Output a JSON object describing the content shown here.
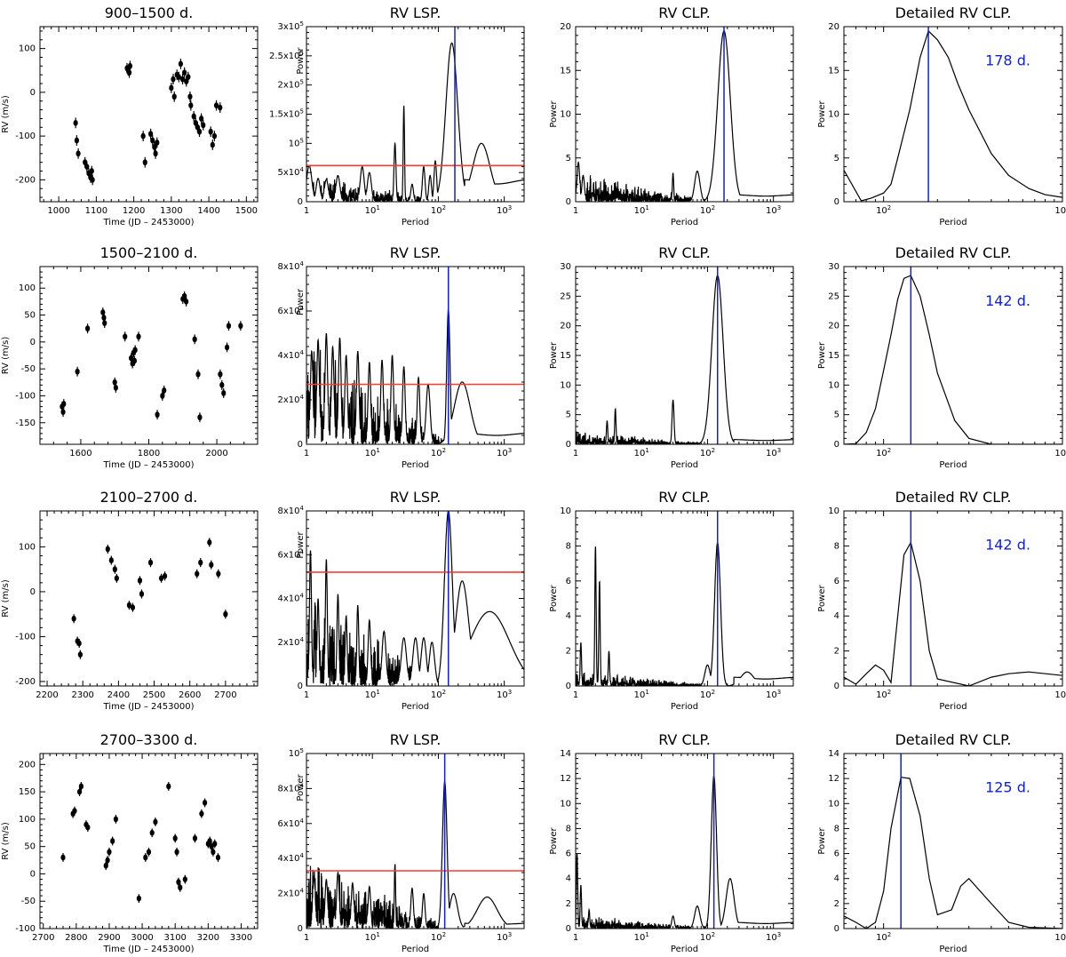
{
  "chart_data": [
    {
      "type": "scatter",
      "title": "900–1500 d.",
      "xlabel": "Time (JD – 2453000)",
      "ylabel": "RV (m/s)",
      "xlim": [
        950,
        1530
      ],
      "ylim": [
        -250,
        150
      ],
      "xticks": [
        1000,
        1100,
        1200,
        1300,
        1400,
        1500
      ],
      "yticks": [
        -200,
        -100,
        0,
        100
      ],
      "x": [
        1045,
        1048,
        1052,
        1070,
        1075,
        1080,
        1085,
        1088,
        1090,
        1182,
        1185,
        1188,
        1190,
        1225,
        1230,
        1245,
        1250,
        1255,
        1258,
        1262,
        1300,
        1305,
        1308,
        1315,
        1320,
        1325,
        1330,
        1335,
        1340,
        1345,
        1350,
        1352,
        1360,
        1365,
        1370,
        1375,
        1380,
        1385,
        1405,
        1410,
        1415,
        1420,
        1430
      ],
      "y": [
        -70,
        -110,
        -140,
        -160,
        -170,
        -185,
        -195,
        -180,
        -200,
        55,
        50,
        45,
        60,
        -100,
        -160,
        -95,
        -110,
        -125,
        -140,
        -115,
        10,
        30,
        -10,
        40,
        35,
        65,
        30,
        45,
        25,
        35,
        -10,
        -30,
        -55,
        -70,
        -80,
        -90,
        -60,
        -75,
        -90,
        -120,
        -100,
        -30,
        -35
      ],
      "err": [
        12,
        12,
        12,
        12,
        12,
        12,
        12,
        12,
        12,
        12,
        12,
        12,
        12,
        12,
        12,
        12,
        12,
        12,
        12,
        12,
        12,
        12,
        12,
        12,
        12,
        12,
        12,
        12,
        12,
        12,
        12,
        12,
        12,
        12,
        12,
        12,
        12,
        12,
        12,
        12,
        12,
        12,
        12
      ]
    },
    {
      "type": "line",
      "title": "RV LSP.",
      "xlabel": "Period",
      "ylabel": "Power",
      "xscale": "log",
      "xlim": [
        1,
        2000
      ],
      "ylim": [
        0,
        300000
      ],
      "yticklabels": [
        "5x10⁴",
        "10⁵",
        "1.5x10⁵",
        "2x10⁵",
        "2.5x10⁵",
        "3x10⁵"
      ],
      "threshold": 62000,
      "marker": 178,
      "peaks": [
        [
          1.1,
          62000,
          0.04
        ],
        [
          1.5,
          40000,
          0.03
        ],
        [
          2,
          38000,
          0.03
        ],
        [
          3,
          45000,
          0.03
        ],
        [
          7,
          60000,
          0.03
        ],
        [
          9,
          50000,
          0.03
        ],
        [
          22,
          100000,
          0.015
        ],
        [
          30,
          165000,
          0.01
        ],
        [
          40,
          30000,
          0.02
        ],
        [
          60,
          60000,
          0.02
        ],
        [
          75,
          45000,
          0.02
        ],
        [
          90,
          70000,
          0.02
        ],
        [
          160,
          272000,
          0.09
        ],
        [
          450,
          100000,
          0.13
        ]
      ],
      "noise": 25000,
      "baseline": 38000
    },
    {
      "type": "line",
      "title": "RV CLP.",
      "xlabel": "Period",
      "ylabel": "Power",
      "xscale": "log",
      "xlim": [
        1,
        2000
      ],
      "ylim": [
        0,
        20
      ],
      "yticks": [
        0,
        5,
        10,
        15,
        20
      ],
      "marker": 178,
      "peaks": [
        [
          1.1,
          4.5,
          0.02
        ],
        [
          1.3,
          3,
          0.02
        ],
        [
          30,
          3.3,
          0.01
        ],
        [
          70,
          3.5,
          0.04
        ],
        [
          178,
          19.5,
          0.095
        ]
      ],
      "noise": 1.8,
      "baseline": 0.8
    },
    {
      "type": "line",
      "title": "Detailed RV CLP.",
      "xlabel": "Period",
      "ylabel": "Power",
      "xscale": "log",
      "xlim": [
        60,
        1000
      ],
      "ylim": [
        0,
        20
      ],
      "yticks": [
        0,
        5,
        10,
        15,
        20
      ],
      "marker": 178,
      "annotation": "178 d.",
      "x": [
        60,
        75,
        85,
        100,
        110,
        120,
        140,
        160,
        178,
        200,
        230,
        260,
        300,
        400,
        500,
        650,
        800,
        1000
      ],
      "y": [
        3.6,
        0.1,
        0.4,
        1,
        2,
        5,
        10.5,
        16.5,
        19.5,
        18.5,
        16.5,
        13.5,
        10.5,
        5.5,
        3,
        1.5,
        0.8,
        0.5
      ]
    },
    {
      "type": "scatter",
      "title": "1500–2100 d.",
      "xlabel": "Time (JD – 2453000)",
      "ylabel": "RV (m/s)",
      "xlim": [
        1480,
        2120
      ],
      "ylim": [
        -190,
        140
      ],
      "xticks": [
        1600,
        1800,
        2000
      ],
      "yticks": [
        -150,
        -100,
        -50,
        0,
        50,
        100
      ],
      "x": [
        1545,
        1548,
        1550,
        1590,
        1620,
        1665,
        1668,
        1670,
        1700,
        1703,
        1730,
        1748,
        1752,
        1755,
        1758,
        1760,
        1770,
        1825,
        1840,
        1845,
        1900,
        1905,
        1910,
        1935,
        1945,
        1950,
        2010,
        2015,
        2020,
        2030,
        2035,
        2070
      ],
      "y": [
        -120,
        -130,
        -115,
        -55,
        25,
        55,
        45,
        35,
        -75,
        -85,
        10,
        -30,
        -40,
        -20,
        -35,
        -15,
        10,
        -135,
        -100,
        -90,
        80,
        85,
        75,
        5,
        -60,
        -140,
        -60,
        -80,
        -95,
        -10,
        30,
        30
      ],
      "err": [
        9,
        9,
        9,
        9,
        9,
        9,
        9,
        9,
        9,
        9,
        9,
        9,
        9,
        9,
        9,
        9,
        9,
        9,
        9,
        9,
        9,
        9,
        9,
        9,
        9,
        9,
        9,
        9,
        9,
        9,
        9,
        9
      ]
    },
    {
      "type": "line",
      "title": "RV LSP.",
      "xlabel": "Period",
      "ylabel": "Power",
      "xscale": "log",
      "xlim": [
        1,
        2000
      ],
      "ylim": [
        0,
        80000
      ],
      "yticklabels": [
        "2x10⁴",
        "4x10⁴",
        "6x10⁴",
        "8x10⁴"
      ],
      "threshold": 27000,
      "marker": 142,
      "peaks": [
        [
          1.2,
          42000,
          0.02
        ],
        [
          1.5,
          47000,
          0.02
        ],
        [
          2,
          50000,
          0.02
        ],
        [
          2.5,
          44000,
          0.02
        ],
        [
          3.2,
          48000,
          0.02
        ],
        [
          4,
          40000,
          0.02
        ],
        [
          6,
          42000,
          0.02
        ],
        [
          9,
          37000,
          0.02
        ],
        [
          14,
          38000,
          0.02
        ],
        [
          20,
          40000,
          0.02
        ],
        [
          30,
          35000,
          0.02
        ],
        [
          50,
          30000,
          0.02
        ],
        [
          70,
          27000,
          0.03
        ],
        [
          142,
          61000,
          0.025
        ],
        [
          230,
          28000,
          0.12
        ]
      ],
      "noise": 25000,
      "baseline": 5000
    },
    {
      "type": "line",
      "title": "RV CLP.",
      "xlabel": "Period",
      "ylabel": "Power",
      "xscale": "log",
      "xlim": [
        1,
        2000
      ],
      "ylim": [
        0,
        30
      ],
      "yticks": [
        0,
        5,
        10,
        15,
        20,
        25,
        30
      ],
      "marker": 142,
      "peaks": [
        [
          3,
          4,
          0.01
        ],
        [
          4,
          6,
          0.01
        ],
        [
          30,
          7.5,
          0.015
        ],
        [
          142,
          28.5,
          0.085
        ]
      ],
      "noise": 1.2,
      "baseline": 0.8
    },
    {
      "type": "line",
      "title": "Detailed RV CLP.",
      "xlabel": "Period",
      "ylabel": "Power",
      "xscale": "log",
      "xlim": [
        60,
        1000
      ],
      "ylim": [
        0,
        30
      ],
      "yticks": [
        0,
        5,
        10,
        15,
        20,
        25,
        30
      ],
      "marker": 142,
      "annotation": "142 d.",
      "x": [
        60,
        70,
        80,
        90,
        100,
        110,
        120,
        130,
        142,
        160,
        180,
        200,
        250,
        300,
        400,
        1000
      ],
      "y": [
        0,
        0.1,
        2,
        6,
        12.5,
        18.5,
        24.5,
        28,
        28.5,
        25,
        18.5,
        12,
        4,
        1,
        0,
        0
      ]
    },
    {
      "type": "scatter",
      "title": "2100–2700 d.",
      "xlabel": "Time (JD – 2453000)",
      "ylabel": "RV (m/s)",
      "xlim": [
        2180,
        2790
      ],
      "ylim": [
        -210,
        180
      ],
      "xticks": [
        2200,
        2300,
        2400,
        2500,
        2600,
        2700
      ],
      "yticks": [
        -200,
        -100,
        0,
        100
      ],
      "x": [
        2275,
        2285,
        2290,
        2293,
        2370,
        2380,
        2390,
        2395,
        2430,
        2440,
        2460,
        2465,
        2490,
        2520,
        2530,
        2620,
        2630,
        2655,
        2660,
        2680,
        2700
      ],
      "y": [
        -60,
        -110,
        -115,
        -140,
        95,
        70,
        50,
        30,
        -30,
        -35,
        25,
        -5,
        65,
        30,
        35,
        40,
        65,
        110,
        60,
        40,
        -50
      ],
      "err": [
        10,
        10,
        10,
        10,
        10,
        10,
        10,
        10,
        10,
        10,
        10,
        10,
        10,
        10,
        10,
        10,
        10,
        10,
        10,
        10,
        10
      ]
    },
    {
      "type": "line",
      "title": "RV LSP.",
      "xlabel": "Period",
      "ylabel": "Power",
      "xscale": "log",
      "xlim": [
        1,
        2000
      ],
      "ylim": [
        0,
        80000
      ],
      "yticklabels": [
        "2x10⁴",
        "4x10⁴",
        "6x10⁴",
        "8x10⁴"
      ],
      "threshold": 52000,
      "marker": 142,
      "peaks": [
        [
          1.15,
          62000,
          0.015
        ],
        [
          1.5,
          40000,
          0.015
        ],
        [
          2,
          58000,
          0.015
        ],
        [
          3,
          42000,
          0.015
        ],
        [
          4,
          32000,
          0.015
        ],
        [
          6,
          37000,
          0.015
        ],
        [
          9,
          30000,
          0.02
        ],
        [
          15,
          25000,
          0.03
        ],
        [
          30,
          22000,
          0.04
        ],
        [
          45,
          22000,
          0.04
        ],
        [
          60,
          22000,
          0.04
        ],
        [
          80,
          20000,
          0.04
        ],
        [
          142,
          80000,
          0.06
        ],
        [
          230,
          48000,
          0.1
        ],
        [
          600,
          34000,
          0.3
        ]
      ],
      "noise": 22000,
      "baseline": 3000
    },
    {
      "type": "line",
      "title": "RV CLP.",
      "xlabel": "Period",
      "ylabel": "Power",
      "xscale": "log",
      "xlim": [
        1,
        2000
      ],
      "ylim": [
        0,
        10
      ],
      "yticks": [
        0,
        2,
        4,
        6,
        8,
        10
      ],
      "marker": 142,
      "peaks": [
        [
          1.2,
          2.5,
          0.01
        ],
        [
          2,
          8,
          0.01
        ],
        [
          2.3,
          6,
          0.01
        ],
        [
          3.2,
          2,
          0.01
        ],
        [
          100,
          1.2,
          0.04
        ],
        [
          142,
          8.2,
          0.045
        ],
        [
          400,
          0.8,
          0.1
        ]
      ],
      "noise": 0.5,
      "baseline": 0.5
    },
    {
      "type": "line",
      "title": "Detailed RV CLP.",
      "xlabel": "Period",
      "ylabel": "Power",
      "xscale": "log",
      "xlim": [
        60,
        1000
      ],
      "ylim": [
        0,
        10
      ],
      "yticks": [
        0,
        2,
        4,
        6,
        8,
        10
      ],
      "marker": 142,
      "annotation": "142 d.",
      "x": [
        60,
        70,
        80,
        90,
        100,
        110,
        120,
        130,
        142,
        160,
        180,
        200,
        300,
        400,
        500,
        650,
        1000
      ],
      "y": [
        0.5,
        0.1,
        0.7,
        1.2,
        0.9,
        0.2,
        4,
        7.5,
        8.2,
        6,
        2,
        0.4,
        0,
        0.5,
        0.7,
        0.8,
        0.6
      ]
    },
    {
      "type": "scatter",
      "title": "2700–3300 d.",
      "xlabel": "Time (JD – 2453000)",
      "ylabel": "RV (m/s)",
      "xlim": [
        2690,
        3350
      ],
      "ylim": [
        -100,
        220
      ],
      "xticks": [
        2700,
        2800,
        2900,
        3000,
        3100,
        3200,
        3300
      ],
      "yticks": [
        -100,
        -50,
        0,
        50,
        100,
        150,
        200
      ],
      "x": [
        2760,
        2790,
        2795,
        2810,
        2815,
        2830,
        2835,
        2890,
        2895,
        2900,
        2910,
        2920,
        2990,
        3010,
        3020,
        3030,
        3040,
        3080,
        3100,
        3105,
        3110,
        3115,
        3130,
        3160,
        3180,
        3190,
        3200,
        3205,
        3210,
        3215,
        3220,
        3230
      ],
      "y": [
        30,
        110,
        115,
        150,
        160,
        90,
        85,
        15,
        25,
        40,
        60,
        100,
        -45,
        30,
        40,
        75,
        95,
        160,
        65,
        40,
        -15,
        -25,
        -10,
        65,
        110,
        130,
        55,
        60,
        50,
        40,
        55,
        30
      ],
      "err": [
        8,
        8,
        8,
        8,
        8,
        8,
        8,
        8,
        8,
        8,
        8,
        8,
        8,
        8,
        8,
        8,
        8,
        8,
        8,
        8,
        8,
        8,
        8,
        8,
        8,
        8,
        8,
        8,
        8,
        8,
        8,
        8
      ]
    },
    {
      "type": "line",
      "title": "RV LSP.",
      "xlabel": "Period",
      "ylabel": "Power",
      "xscale": "log",
      "xlim": [
        1,
        2000
      ],
      "ylim": [
        0,
        100000
      ],
      "yticklabels": [
        "2x10⁴",
        "4x10⁴",
        "6x10⁴",
        "8x10⁴",
        "10⁵"
      ],
      "threshold": 33000,
      "marker": 125,
      "peaks": [
        [
          1.3,
          30000,
          0.02
        ],
        [
          2,
          28000,
          0.02
        ],
        [
          3,
          32000,
          0.02
        ],
        [
          5,
          26000,
          0.02
        ],
        [
          9,
          24000,
          0.02
        ],
        [
          22,
          37000,
          0.01
        ],
        [
          40,
          23000,
          0.02
        ],
        [
          60,
          20000,
          0.02
        ],
        [
          125,
          84000,
          0.035
        ],
        [
          170,
          20000,
          0.06
        ],
        [
          550,
          18000,
          0.15
        ]
      ],
      "noise": 22000,
      "baseline": 3000
    },
    {
      "type": "line",
      "title": "RV CLP.",
      "xlabel": "Period",
      "ylabel": "Power",
      "xscale": "log",
      "xlim": [
        1,
        2000
      ],
      "ylim": [
        0,
        14
      ],
      "yticks": [
        0,
        2,
        4,
        6,
        8,
        10,
        12,
        14
      ],
      "marker": 125,
      "peaks": [
        [
          1.05,
          6,
          0.01
        ],
        [
          1.2,
          3.5,
          0.01
        ],
        [
          1.6,
          1.5,
          0.01
        ],
        [
          30,
          1,
          0.02
        ],
        [
          70,
          1.8,
          0.04
        ],
        [
          125,
          12.2,
          0.04
        ],
        [
          220,
          4,
          0.06
        ]
      ],
      "noise": 0.6,
      "baseline": 0.5
    },
    {
      "type": "line",
      "title": "Detailed RV CLP.",
      "xlabel": "Period",
      "ylabel": "Power",
      "xscale": "log",
      "xlim": [
        60,
        1000
      ],
      "ylim": [
        0,
        14
      ],
      "yticks": [
        0,
        2,
        4,
        6,
        8,
        10,
        12,
        14
      ],
      "marker": 125,
      "annotation": "125 d.",
      "x": [
        60,
        70,
        80,
        90,
        100,
        110,
        125,
        140,
        160,
        180,
        200,
        240,
        270,
        300,
        400,
        500,
        650,
        1000
      ],
      "y": [
        1,
        0.5,
        0,
        0.5,
        3,
        8,
        12.1,
        12,
        9,
        4,
        1.1,
        1.5,
        3.4,
        4,
        2,
        0.5,
        0.1,
        0
      ]
    }
  ]
}
